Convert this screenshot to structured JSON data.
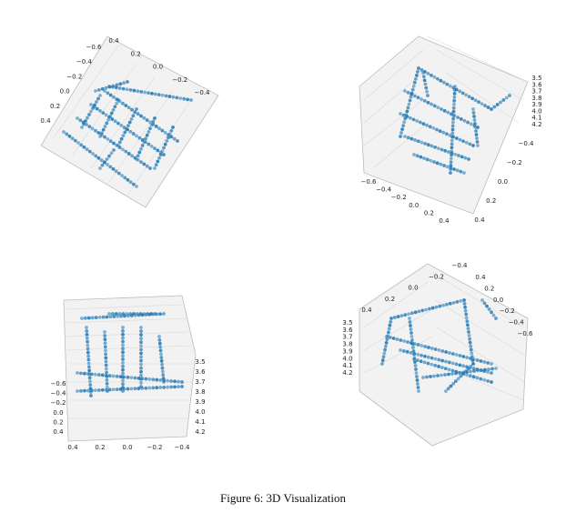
{
  "caption": "Figure 6: 3D Visualization",
  "panels": [
    {
      "groups": [
        [
          "−0.6",
          "−0.4",
          "−0.2",
          "0.0",
          "0.2",
          "0.4"
        ],
        [
          "0.4",
          "0.2",
          "0.0",
          "−0.2",
          "−0.4"
        ]
      ]
    },
    {
      "groups": [
        [
          "3.5",
          "3.6",
          "3.7",
          "3.8",
          "3.9",
          "4.0",
          "4.1",
          "4.2"
        ],
        [
          "−0.4",
          "−0.2",
          "0.0",
          "0.2",
          "0.4"
        ],
        [
          "−0.6",
          "−0.4",
          "−0.2",
          "0.0",
          "0.2",
          "0.4"
        ]
      ]
    },
    {
      "groups": [
        [
          "−0.6",
          "−0.4",
          "−0.2",
          "0.0",
          "0.2",
          "0.4"
        ],
        [
          "3.5",
          "3.6",
          "3.7",
          "3.8",
          "3.9",
          "4.0",
          "4.1",
          "4.2"
        ],
        [
          "0.4",
          "0.2",
          "0.0",
          "−0.2",
          "−0.4"
        ]
      ]
    },
    {
      "groups": [
        [
          "−0.4",
          "−0.2",
          "0.0",
          "0.2",
          "0.4"
        ],
        [
          "0.4",
          "0.2",
          "0.0",
          "−0.2",
          "−0.4",
          "−0.6"
        ],
        [
          "3.5",
          "3.6",
          "3.7",
          "3.8",
          "3.9",
          "4.0",
          "4.1",
          "4.2"
        ]
      ]
    }
  ]
}
